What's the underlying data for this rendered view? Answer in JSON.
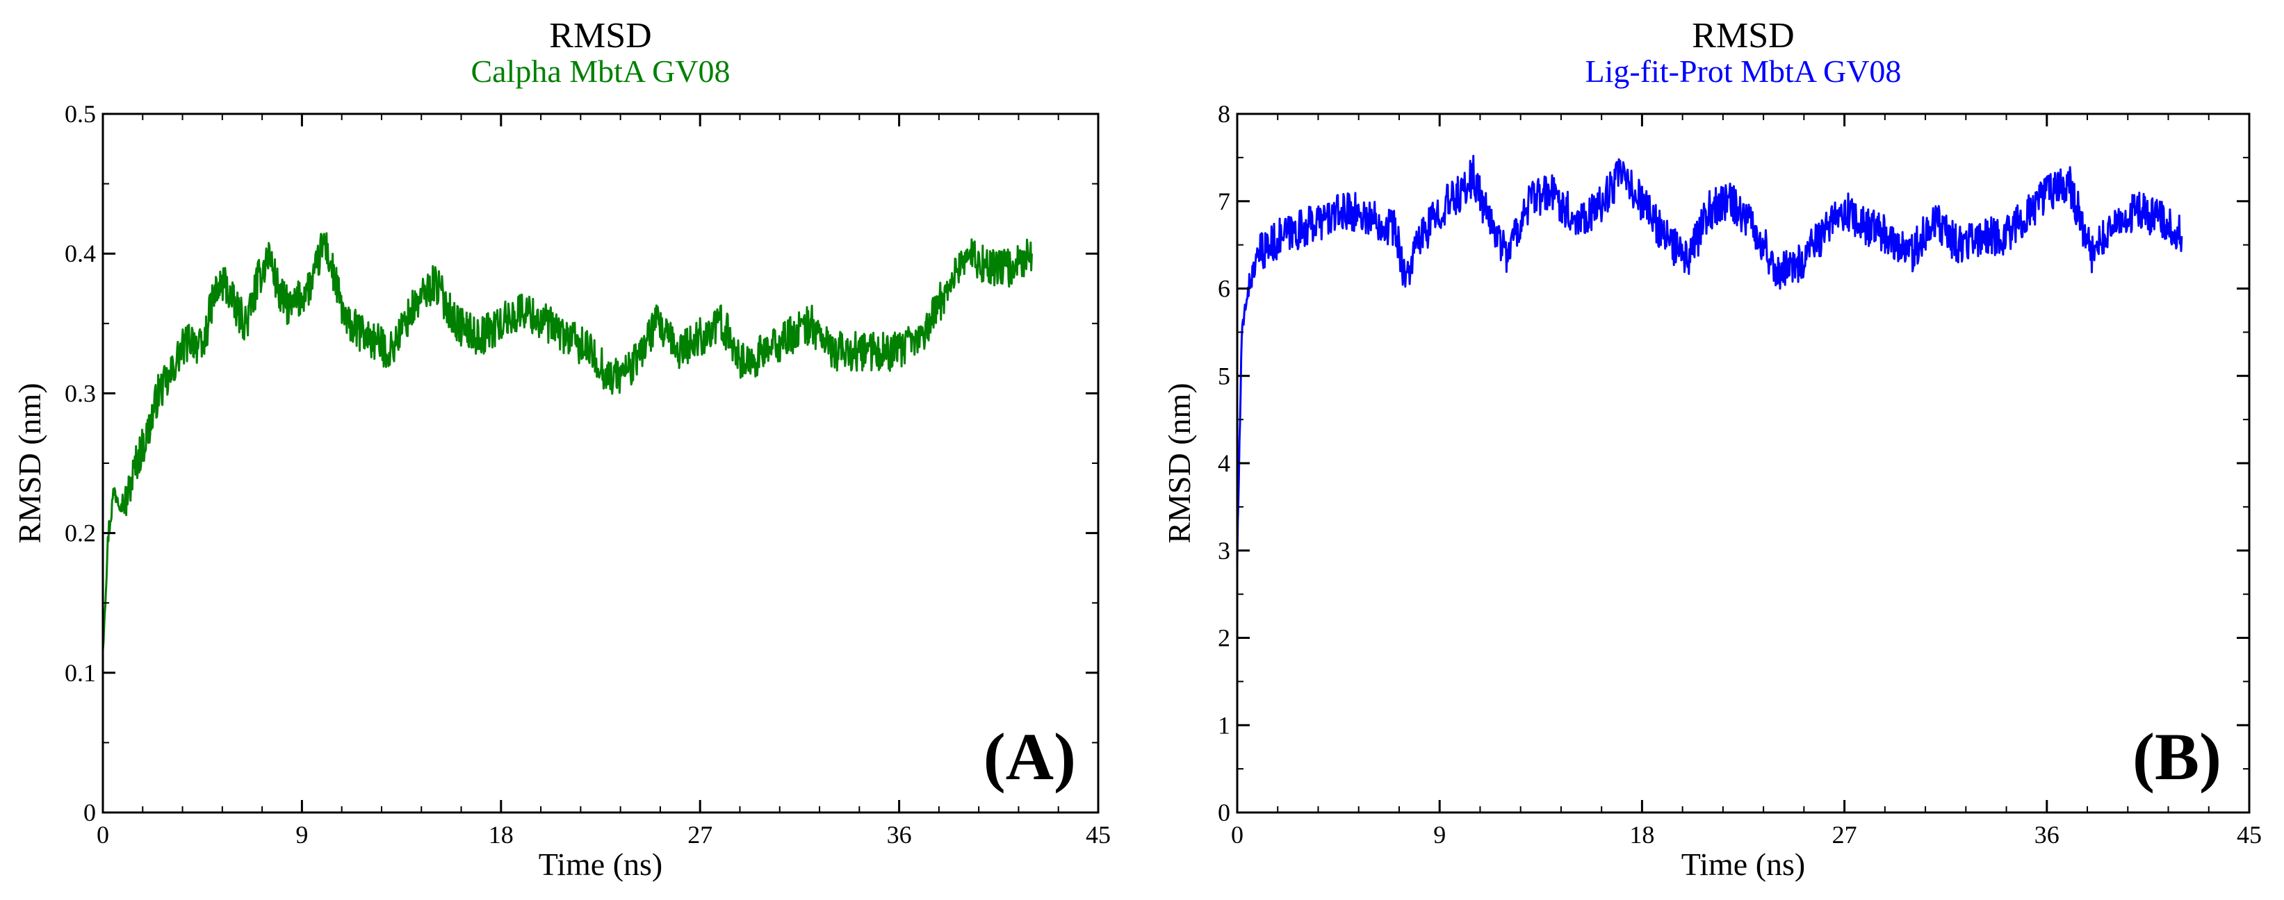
{
  "chart_data": [
    {
      "type": "line",
      "title": "RMSD",
      "subtitle": "Calpha MbtA GV08",
      "xlabel": "Time (ns)",
      "ylabel": "RMSD (nm)",
      "xlim": [
        0,
        45
      ],
      "ylim": [
        0,
        0.5
      ],
      "xticks": [
        "0",
        "9",
        "18",
        "27",
        "36",
        "45"
      ],
      "yticks": [
        "0",
        "0.1",
        "0.2",
        "0.3",
        "0.4",
        "0.5"
      ],
      "panel_label": "(A)",
      "color": "#008000",
      "series": [
        {
          "x": [
            0,
            0.25,
            0.5,
            1,
            1.5,
            2,
            2.5,
            3,
            3.5,
            4,
            4.5,
            5,
            5.5,
            6,
            6.5,
            7,
            7.5,
            8,
            8.5,
            9,
            9.5,
            10,
            10.5,
            11,
            12,
            13,
            14,
            15,
            16,
            17,
            18,
            19,
            20,
            21,
            22,
            23,
            24,
            25,
            26,
            27,
            28,
            29,
            30,
            31,
            32,
            33,
            34,
            35,
            36,
            37,
            38,
            39,
            40,
            41,
            42
          ],
          "y": [
            0.12,
            0.2,
            0.23,
            0.22,
            0.25,
            0.27,
            0.3,
            0.31,
            0.33,
            0.34,
            0.33,
            0.37,
            0.38,
            0.36,
            0.35,
            0.38,
            0.4,
            0.37,
            0.36,
            0.37,
            0.38,
            0.41,
            0.38,
            0.35,
            0.34,
            0.33,
            0.36,
            0.38,
            0.35,
            0.34,
            0.35,
            0.36,
            0.35,
            0.34,
            0.33,
            0.31,
            0.32,
            0.35,
            0.33,
            0.34,
            0.35,
            0.32,
            0.33,
            0.34,
            0.35,
            0.33,
            0.33,
            0.33,
            0.33,
            0.34,
            0.37,
            0.4,
            0.39,
            0.39,
            0.4
          ]
        }
      ]
    },
    {
      "type": "line",
      "title": "RMSD",
      "subtitle": "Lig-fit-Prot MbtA GV08",
      "xlabel": "Time (ns)",
      "ylabel": "RMSD (nm)",
      "xlim": [
        0,
        45
      ],
      "ylim": [
        0,
        8
      ],
      "xticks": [
        "0",
        "9",
        "18",
        "27",
        "36",
        "45"
      ],
      "yticks": [
        "0",
        "1",
        "2",
        "3",
        "4",
        "5",
        "6",
        "7",
        "8"
      ],
      "panel_label": "(B)",
      "color": "#0000ff",
      "series": [
        {
          "x": [
            0,
            0.1,
            0.2,
            0.4,
            0.7,
            1,
            1.5,
            2,
            3,
            4,
            5,
            6,
            7,
            7.5,
            8,
            9,
            10,
            10.5,
            11,
            12,
            13,
            14,
            15,
            16,
            17,
            18,
            19,
            20,
            21,
            22,
            23,
            24,
            25,
            26,
            27,
            28,
            29,
            30,
            31,
            32,
            33,
            34,
            35,
            36,
            37,
            38,
            39,
            40,
            41,
            42
          ],
          "y": [
            2.9,
            4.2,
            5.4,
            5.9,
            6.2,
            6.4,
            6.5,
            6.6,
            6.7,
            6.8,
            6.9,
            6.8,
            6.7,
            6.1,
            6.5,
            6.9,
            7.1,
            7.3,
            6.9,
            6.4,
            7.0,
            7.1,
            6.8,
            6.9,
            7.3,
            7.0,
            6.6,
            6.3,
            6.9,
            7.0,
            6.7,
            6.2,
            6.3,
            6.6,
            6.9,
            6.7,
            6.6,
            6.4,
            6.8,
            6.5,
            6.6,
            6.6,
            6.8,
            7.1,
            7.2,
            6.4,
            6.7,
            6.9,
            6.8,
            6.6
          ]
        }
      ]
    }
  ]
}
